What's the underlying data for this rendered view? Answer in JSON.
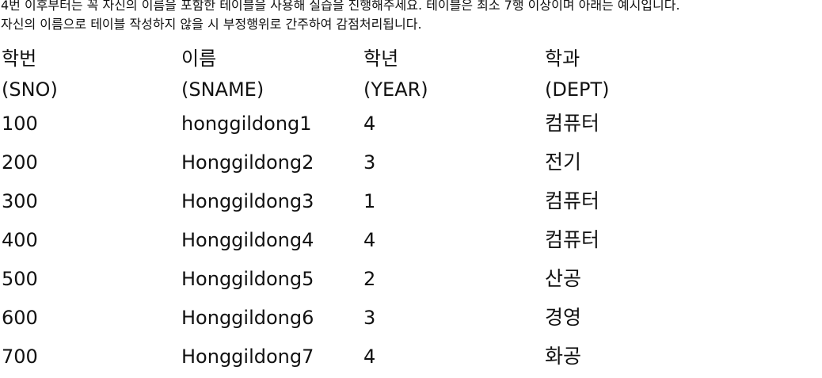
{
  "instructions": {
    "line1": "4번 이후부터는 꼭 자신의 이름을 포함한 테이블을 사용해 실습을 진행해주세요. 테이블은 최소 7행 이상이며 아래는 예시입니다.",
    "line2": "자신의 이름으로 테이블 작성하지 않을 시 부정행위로 간주하여 감점처리됩니다."
  },
  "table": {
    "headers": [
      "학번",
      "이름",
      "학년",
      "학과"
    ],
    "codes": [
      "(SNO)",
      "(SNAME)",
      "(YEAR)",
      "(DEPT)"
    ],
    "rows": [
      [
        "100",
        "honggildong1",
        "4",
        "컴퓨터"
      ],
      [
        "200",
        "Honggildong2",
        "3",
        "전기"
      ],
      [
        "300",
        "Honggildong3",
        "1",
        "컴퓨터"
      ],
      [
        "400",
        "Honggildong4",
        "4",
        "컴퓨터"
      ],
      [
        "500",
        "Honggildong5",
        "2",
        "산공"
      ],
      [
        "600",
        "Honggildong6",
        "3",
        "경영"
      ],
      [
        "700",
        "Honggildong7",
        "4",
        "화공"
      ]
    ]
  }
}
